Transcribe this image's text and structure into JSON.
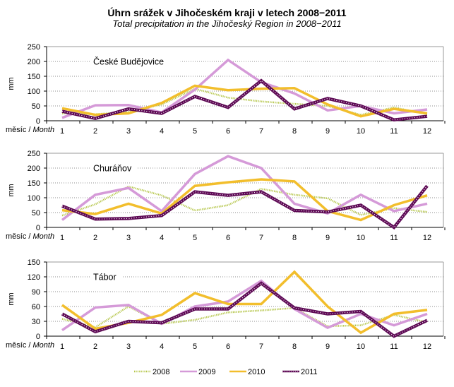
{
  "title": "Úhrn srážek  v Jihočeském  kraji v letech 2008−2011",
  "subtitle": "Total precipitation  in the Jihočeský Region  in 2008−2011",
  "legend": {
    "placement": "bottom-center",
    "entries": [
      {
        "label": "2008",
        "color": "#b5c64a",
        "style": "thin-dotted"
      },
      {
        "label": "2009",
        "color": "#d59ad8",
        "style": "medium"
      },
      {
        "label": "2010",
        "color": "#f2be2c",
        "style": "solid"
      },
      {
        "label": "2011",
        "color": "#5e0a55",
        "style": "thick-dotted"
      }
    ]
  },
  "x_label_cz": "měsíc / ",
  "x_label_en": "Month",
  "chart_data": [
    {
      "type": "line",
      "title": "České Budějovice",
      "xlabel": "měsíc / Month",
      "ylabel": "mm",
      "ylim": [
        0,
        250
      ],
      "yticks": [
        0,
        50,
        100,
        150,
        200,
        250
      ],
      "grid": true,
      "categories": [
        "1",
        "2",
        "3",
        "4",
        "5",
        "6",
        "7",
        "8",
        "9",
        "10",
        "11",
        "12"
      ],
      "series": [
        {
          "name": "2008",
          "values": [
            25,
            22,
            30,
            55,
            108,
            78,
            65,
            57,
            50,
            20,
            45,
            22
          ]
        },
        {
          "name": "2009",
          "values": [
            10,
            52,
            53,
            28,
            105,
            205,
            130,
            92,
            35,
            50,
            25,
            38
          ]
        },
        {
          "name": "2010",
          "values": [
            42,
            20,
            25,
            60,
            118,
            103,
            108,
            110,
            55,
            15,
            40,
            25
          ]
        },
        {
          "name": "2011",
          "values": [
            32,
            8,
            40,
            25,
            82,
            45,
            135,
            40,
            75,
            50,
            3,
            15
          ]
        }
      ]
    },
    {
      "type": "line",
      "title": "Churáňov",
      "xlabel": "měsíc / Month",
      "ylabel": "mm",
      "ylim": [
        0,
        250
      ],
      "yticks": [
        0,
        50,
        100,
        150,
        200,
        250
      ],
      "grid": true,
      "categories": [
        "1",
        "2",
        "3",
        "4",
        "5",
        "6",
        "7",
        "8",
        "9",
        "10",
        "11",
        "12"
      ],
      "series": [
        {
          "name": "2008",
          "values": [
            40,
            78,
            138,
            108,
            57,
            75,
            130,
            110,
            98,
            42,
            65,
            52
          ]
        },
        {
          "name": "2009",
          "values": [
            25,
            110,
            133,
            55,
            180,
            240,
            200,
            80,
            47,
            110,
            55,
            80
          ]
        },
        {
          "name": "2010",
          "values": [
            58,
            45,
            80,
            47,
            140,
            152,
            162,
            155,
            55,
            25,
            75,
            108
          ]
        },
        {
          "name": "2011",
          "values": [
            72,
            28,
            30,
            40,
            120,
            108,
            120,
            57,
            52,
            75,
            0,
            140
          ]
        }
      ]
    },
    {
      "type": "line",
      "title": "Tábor",
      "xlabel": "měsíc / Month",
      "ylabel": "mm",
      "ylim": [
        0,
        150
      ],
      "yticks": [
        0,
        30,
        60,
        90,
        120,
        150
      ],
      "grid": true,
      "categories": [
        "1",
        "2",
        "3",
        "4",
        "5",
        "6",
        "7",
        "8",
        "9",
        "10",
        "11",
        "12"
      ],
      "series": [
        {
          "name": "2008",
          "values": [
            35,
            18,
            60,
            25,
            33,
            48,
            52,
            57,
            20,
            22,
            43,
            28
          ]
        },
        {
          "name": "2009",
          "values": [
            12,
            58,
            63,
            25,
            60,
            70,
            112,
            55,
            17,
            45,
            22,
            45
          ]
        },
        {
          "name": "2010",
          "values": [
            63,
            15,
            27,
            43,
            87,
            65,
            65,
            130,
            60,
            7,
            45,
            53
          ]
        },
        {
          "name": "2011",
          "values": [
            45,
            9,
            30,
            27,
            55,
            55,
            107,
            57,
            45,
            50,
            0,
            32
          ]
        }
      ]
    }
  ]
}
